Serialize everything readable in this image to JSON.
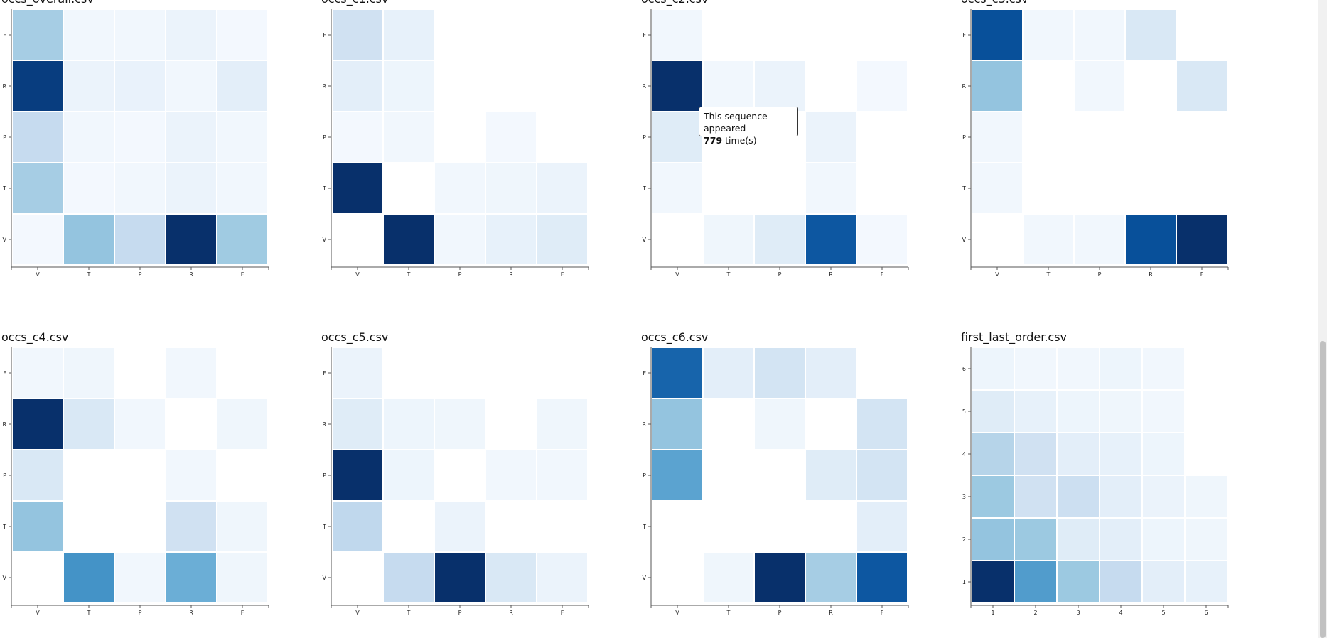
{
  "palette": {
    "low": "#f7fbff",
    "high": "#08306b",
    "stops": [
      "#f7fbff",
      "#deebf7",
      "#c6dbef",
      "#9ecae1",
      "#6baed6",
      "#4292c6",
      "#2171b5",
      "#08519c",
      "#08306b"
    ]
  },
  "tooltip": {
    "line1": "This sequence appeared",
    "count": "779",
    "suffix": " time(s)"
  },
  "chart_data": [
    {
      "type": "heatmap",
      "title": "occs_overall.csv",
      "x_labels": [
        "V",
        "T",
        "P",
        "R",
        "F"
      ],
      "y_labels": [
        "V",
        "T",
        "P",
        "R",
        "F"
      ],
      "matrix": [
        [
          0.02,
          0.4,
          0.25,
          1.0,
          0.37
        ],
        [
          0.35,
          0.02,
          0.03,
          0.06,
          0.03
        ],
        [
          0.25,
          0.03,
          0.02,
          0.06,
          0.03
        ],
        [
          0.95,
          0.06,
          0.07,
          0.03,
          0.1
        ],
        [
          0.35,
          0.03,
          0.03,
          0.06,
          0.02
        ]
      ]
    },
    {
      "type": "heatmap",
      "title": "occs_c1.csv",
      "x_labels": [
        "V",
        "T",
        "P",
        "R",
        "F"
      ],
      "y_labels": [
        "V",
        "T",
        "P",
        "R",
        "F"
      ],
      "matrix": [
        [
          0.0,
          1.0,
          0.03,
          0.08,
          0.12
        ],
        [
          1.0,
          0.0,
          0.03,
          0.04,
          0.06
        ],
        [
          0.02,
          0.03,
          0.0,
          0.02,
          0.0
        ],
        [
          0.1,
          0.05,
          0.0,
          0.0,
          0.0
        ],
        [
          0.2,
          0.08,
          0.0,
          0.0,
          0.0
        ]
      ]
    },
    {
      "type": "heatmap",
      "title": "occs_c2.csv",
      "x_labels": [
        "V",
        "T",
        "P",
        "R",
        "F"
      ],
      "y_labels": [
        "V",
        "T",
        "P",
        "R",
        "F"
      ],
      "matrix": [
        [
          0.0,
          0.04,
          0.12,
          0.85,
          0.02
        ],
        [
          0.03,
          0.0,
          0.0,
          0.03,
          0.0
        ],
        [
          0.12,
          0.0,
          0.0,
          0.06,
          0.0
        ],
        [
          1.0,
          0.03,
          0.06,
          0.0,
          0.02
        ],
        [
          0.03,
          0.0,
          0.0,
          0.0,
          0.0
        ]
      ]
    },
    {
      "type": "heatmap",
      "title": "occs_c3.csv",
      "x_labels": [
        "V",
        "T",
        "P",
        "R",
        "F"
      ],
      "y_labels": [
        "V",
        "T",
        "P",
        "R",
        "F"
      ],
      "matrix": [
        [
          0.0,
          0.03,
          0.03,
          0.88,
          1.0
        ],
        [
          0.03,
          0.0,
          0.0,
          0.0,
          0.0
        ],
        [
          0.03,
          0.0,
          0.0,
          0.0,
          0.0
        ],
        [
          0.4,
          0.0,
          0.03,
          0.0,
          0.15
        ],
        [
          0.88,
          0.03,
          0.03,
          0.15,
          0.0
        ]
      ]
    },
    {
      "type": "heatmap",
      "title": "occs_c4.csv",
      "x_labels": [
        "V",
        "T",
        "P",
        "R",
        "F"
      ],
      "y_labels": [
        "V",
        "T",
        "P",
        "R",
        "F"
      ],
      "matrix": [
        [
          0.0,
          0.62,
          0.03,
          0.5,
          0.04
        ],
        [
          0.4,
          0.0,
          0.0,
          0.2,
          0.04
        ],
        [
          0.15,
          0.0,
          0.0,
          0.03,
          0.0
        ],
        [
          1.0,
          0.15,
          0.03,
          0.0,
          0.04
        ],
        [
          0.03,
          0.04,
          0.0,
          0.03,
          0.0
        ]
      ]
    },
    {
      "type": "heatmap",
      "title": "occs_c5.csv",
      "x_labels": [
        "V",
        "T",
        "P",
        "R",
        "F"
      ],
      "y_labels": [
        "V",
        "T",
        "P",
        "R",
        "F"
      ],
      "matrix": [
        [
          0.0,
          0.25,
          1.0,
          0.15,
          0.06
        ],
        [
          0.27,
          0.0,
          0.06,
          0.0,
          0.0
        ],
        [
          1.0,
          0.05,
          0.0,
          0.03,
          0.03
        ],
        [
          0.12,
          0.05,
          0.04,
          0.0,
          0.04
        ],
        [
          0.06,
          0.0,
          0.0,
          0.0,
          0.0
        ]
      ]
    },
    {
      "type": "heatmap",
      "title": "occs_c6.csv",
      "x_labels": [
        "V",
        "T",
        "P",
        "R",
        "F"
      ],
      "y_labels": [
        "V",
        "T",
        "P",
        "R",
        "F"
      ],
      "matrix": [
        [
          0.0,
          0.04,
          1.0,
          0.35,
          0.85
        ],
        [
          0.0,
          0.0,
          0.0,
          0.0,
          0.1
        ],
        [
          0.55,
          0.0,
          0.0,
          0.12,
          0.18
        ],
        [
          0.4,
          0.0,
          0.04,
          0.0,
          0.18
        ],
        [
          0.8,
          0.1,
          0.18,
          0.1,
          0.0
        ]
      ]
    },
    {
      "type": "heatmap",
      "title": "first_last_order.csv",
      "x_labels": [
        "1",
        "2",
        "3",
        "4",
        "5",
        "6"
      ],
      "y_labels": [
        "1",
        "2",
        "3",
        "4",
        "5",
        "6"
      ],
      "matrix": [
        [
          1.0,
          0.58,
          0.38,
          0.25,
          0.1,
          0.08
        ],
        [
          0.4,
          0.38,
          0.12,
          0.1,
          0.05,
          0.04
        ],
        [
          0.38,
          0.2,
          0.22,
          0.1,
          0.06,
          0.04
        ],
        [
          0.3,
          0.2,
          0.1,
          0.08,
          0.05,
          0.0
        ],
        [
          0.12,
          0.08,
          0.05,
          0.04,
          0.03,
          0.0
        ],
        [
          0.05,
          0.03,
          0.03,
          0.05,
          0.03,
          0.0
        ]
      ]
    }
  ]
}
